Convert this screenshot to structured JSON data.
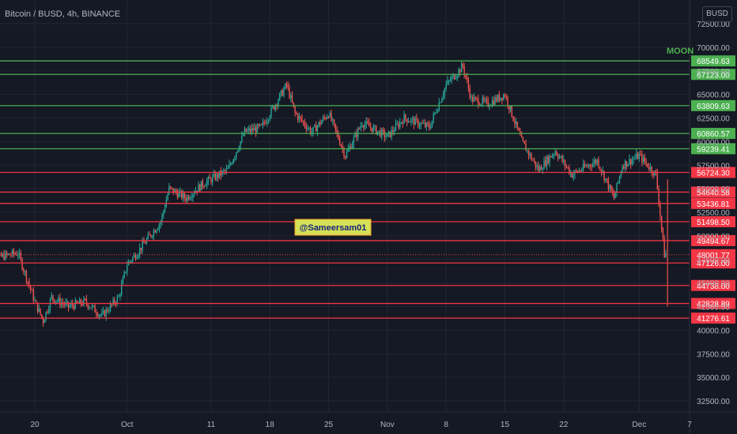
{
  "header": {
    "title": "Bitcoin / BUSD, 4h, BINANCE",
    "currency": "BUSD"
  },
  "watermark": "@Sameersam01",
  "colors": {
    "background": "#151924",
    "grid": "#232632",
    "axis_text": "#b2b5be",
    "up": "#26a69a",
    "down": "#ef5350",
    "support_line": "#f23645",
    "resistance_line": "#4caf50",
    "moon_text": "#4caf50",
    "watermark_bg": "#d4e157",
    "watermark_border": "#f9a825",
    "watermark_text": "#1a237e"
  },
  "chart_data": {
    "type": "line",
    "title": "Bitcoin / BUSD, 4h, BINANCE",
    "xlabel": "",
    "ylabel": "",
    "ylim": [
      31500,
      73500
    ],
    "price_axis_ticks": [
      32500,
      35000,
      37500,
      40000,
      42500,
      45000,
      47500,
      50000,
      52500,
      55000,
      57500,
      60000,
      62500,
      65000,
      67500,
      70000,
      72500
    ],
    "x_tick_labels": [
      "20",
      "Oct",
      "11",
      "18",
      "25",
      "Nov",
      "8",
      "15",
      "22",
      "Dec",
      "7"
    ],
    "annotation": "MOON",
    "green_levels": [
      68549.63,
      67123.0,
      63809.63,
      60860.57,
      59239.41
    ],
    "red_levels": [
      56724.3,
      54640.58,
      53436.81,
      51498.5,
      49494.67,
      47126.0,
      44738.0,
      42828.89,
      41276.61
    ],
    "current_price": 48001.77,
    "price_series": {
      "interval": "4h",
      "key_points_date_price": [
        [
          "2021-09-14",
          47000
        ],
        [
          "2021-09-16",
          47800
        ],
        [
          "2021-09-18",
          48200
        ],
        [
          "2021-09-20",
          43000
        ],
        [
          "2021-09-21",
          41000
        ],
        [
          "2021-09-22",
          43500
        ],
        [
          "2021-09-24",
          42500
        ],
        [
          "2021-09-26",
          43000
        ],
        [
          "2021-09-28",
          41500
        ],
        [
          "2021-09-30",
          43500
        ],
        [
          "2021-10-01",
          47000
        ],
        [
          "2021-10-02",
          48000
        ],
        [
          "2021-10-05",
          51500
        ],
        [
          "2021-10-06",
          55000
        ],
        [
          "2021-10-08",
          54000
        ],
        [
          "2021-10-10",
          55500
        ],
        [
          "2021-10-13",
          57000
        ],
        [
          "2021-10-15",
          61000
        ],
        [
          "2021-10-17",
          61500
        ],
        [
          "2021-10-20",
          66000
        ],
        [
          "2021-10-21",
          63000
        ],
        [
          "2021-10-23",
          61000
        ],
        [
          "2021-10-25",
          63000
        ],
        [
          "2021-10-27",
          58500
        ],
        [
          "2021-10-29",
          62000
        ],
        [
          "2021-11-01",
          60500
        ],
        [
          "2021-11-03",
          62500
        ],
        [
          "2021-11-06",
          61500
        ],
        [
          "2021-11-08",
          66000
        ],
        [
          "2021-11-10",
          68000
        ],
        [
          "2021-11-11",
          64500
        ],
        [
          "2021-11-13",
          64000
        ],
        [
          "2021-11-15",
          65000
        ],
        [
          "2021-11-17",
          60000
        ],
        [
          "2021-11-19",
          57000
        ],
        [
          "2021-11-21",
          59000
        ],
        [
          "2021-11-23",
          56500
        ],
        [
          "2021-11-26",
          58000
        ],
        [
          "2021-11-28",
          54000
        ],
        [
          "2021-11-29",
          57500
        ],
        [
          "2021-12-01",
          58500
        ],
        [
          "2021-12-03",
          56500
        ],
        [
          "2021-12-04",
          48000
        ],
        [
          "2021-12-05",
          49000
        ]
      ]
    }
  }
}
